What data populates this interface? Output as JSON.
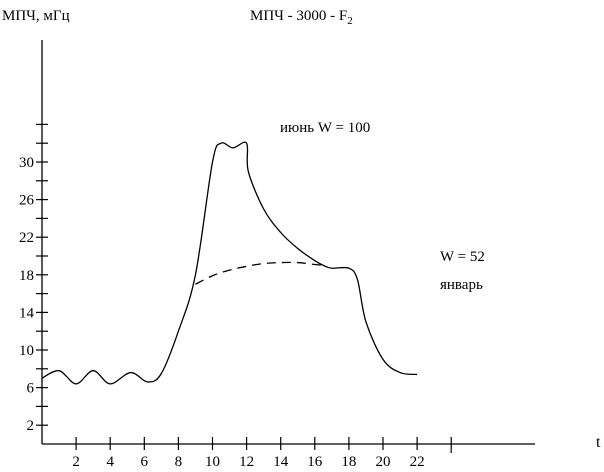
{
  "chart_data": {
    "type": "line",
    "title": "МПЧ - 3000 - F",
    "title_subscript": "2",
    "ylabel": "МПЧ, мГц",
    "xlabel": "t",
    "xlim": [
      0,
      24
    ],
    "ylim": [
      0,
      34
    ],
    "x_ticks": [
      2,
      4,
      6,
      8,
      10,
      12,
      14,
      16,
      18,
      20,
      22
    ],
    "y_ticks": [
      2,
      6,
      10,
      14,
      18,
      22,
      26,
      30
    ],
    "grid": false,
    "annotations": [
      "июнь W = 100",
      "W = 52",
      "январь"
    ],
    "series": [
      {
        "name": "июнь W = 100",
        "style": "solid",
        "x": [
          0,
          1,
          2,
          3,
          4,
          5.2,
          6.2,
          7,
          8,
          9,
          10,
          10.5,
          11.2,
          12,
          12.1,
          13,
          14,
          15,
          16,
          16.5,
          17,
          18,
          18.5,
          19,
          20,
          21,
          22
        ],
        "y": [
          7,
          7.8,
          6.4,
          7.8,
          6.4,
          7.6,
          6.6,
          7.5,
          12,
          18,
          30,
          32,
          31.5,
          32,
          29,
          25,
          22.5,
          20.8,
          19.5,
          19,
          18.7,
          18.7,
          17.5,
          13,
          9,
          7.6,
          7.4
        ]
      },
      {
        "name": "январь W = 52",
        "style": "dashed",
        "x": [
          9,
          10,
          11,
          12,
          13,
          14,
          15,
          16,
          16.5
        ],
        "y": [
          17,
          17.9,
          18.5,
          18.9,
          19.2,
          19.3,
          19.3,
          19.1,
          19
        ]
      }
    ]
  }
}
